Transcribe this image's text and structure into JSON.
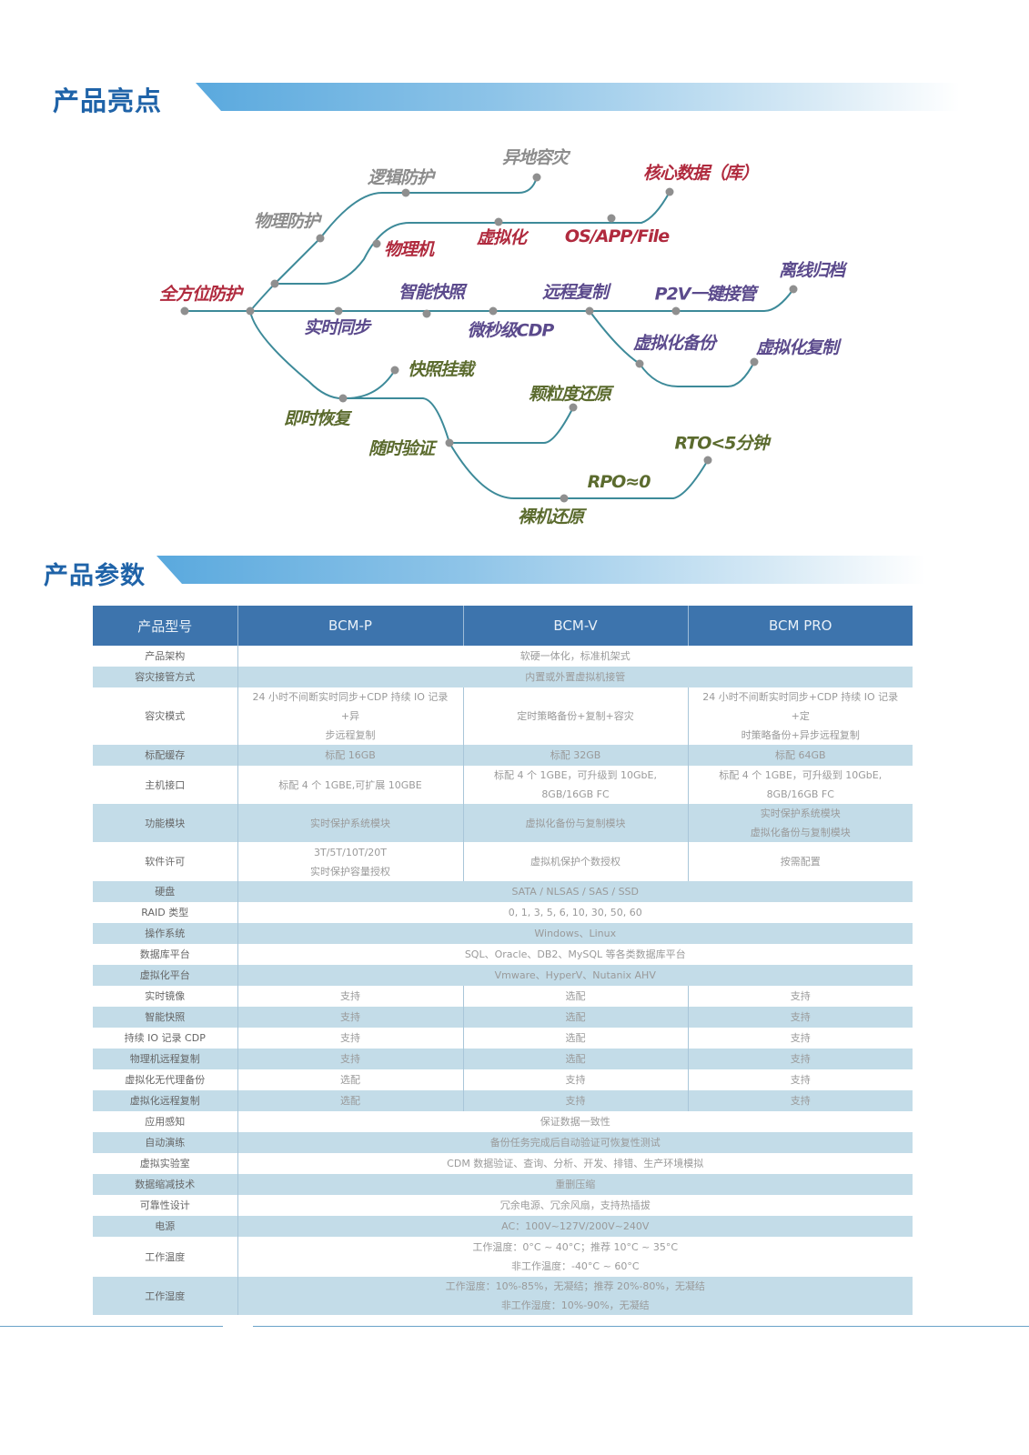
{
  "highlights": {
    "title": "产品亮点",
    "labels": [
      {
        "text": "全方位防护",
        "tone": "red"
      },
      {
        "text": "物理防护",
        "tone": "grey"
      },
      {
        "text": "逻辑防护",
        "tone": "grey"
      },
      {
        "text": "异地容灾",
        "tone": "grey"
      },
      {
        "text": "核心数据（库）",
        "tone": "red"
      },
      {
        "text": "物理机",
        "tone": "red"
      },
      {
        "text": "虚拟化",
        "tone": "red"
      },
      {
        "text": "OS/APP/File",
        "tone": "red"
      },
      {
        "text": "智能快照",
        "tone": "purple"
      },
      {
        "text": "远程复制",
        "tone": "purple"
      },
      {
        "text": "P2V一键接管",
        "tone": "purple"
      },
      {
        "text": "离线归档",
        "tone": "purple"
      },
      {
        "text": "实时同步",
        "tone": "purple"
      },
      {
        "text": "微秒级CDP",
        "tone": "purple"
      },
      {
        "text": "虚拟化备份",
        "tone": "purple"
      },
      {
        "text": "虚拟化复制",
        "tone": "purple"
      },
      {
        "text": "快照挂载",
        "tone": "green"
      },
      {
        "text": "即时恢复",
        "tone": "green"
      },
      {
        "text": "颗粒度还原",
        "tone": "green"
      },
      {
        "text": "随时验证",
        "tone": "green"
      },
      {
        "text": "RTO<5分钟",
        "tone": "green"
      },
      {
        "text": "RPO≈0",
        "tone": "green"
      },
      {
        "text": "裸机还原",
        "tone": "green"
      }
    ],
    "colors": {
      "line": "#3d8a99",
      "red": "#b02a3e",
      "grey": "#8c8c8c",
      "purple": "#5b4a8c",
      "green": "#5b6b2e"
    }
  },
  "params": {
    "title": "产品参数",
    "header": [
      "产品型号",
      "BCM-P",
      "BCM-V",
      "BCM PRO"
    ],
    "rows": [
      {
        "label": "产品架构",
        "cells": [
          "软硬一体化，标准机架式"
        ]
      },
      {
        "label": "容灾接管方式",
        "cells": [
          "内置或外置虚拟机接管"
        ]
      },
      {
        "label": "容灾模式",
        "cells": [
          "24 小时不间断实时同步+CDP 持续 IO 记录+异\n步远程复制",
          "定时策略备份+复制+容灾",
          "24 小时不间断实时同步+CDP 持续 IO 记录+定\n时策略备份+异步远程复制"
        ]
      },
      {
        "label": "标配缓存",
        "cells": [
          "标配 16GB",
          "标配 32GB",
          "标配 64GB"
        ]
      },
      {
        "label": "主机接口",
        "cells": [
          "标配 4 个 1GBE,可扩展 10GBE",
          "标配 4 个 1GBE，可升级到 10GbE,\n8GB/16GB FC",
          "标配 4 个 1GBE，可升级到 10GbE,\n8GB/16GB FC"
        ]
      },
      {
        "label": "功能模块",
        "cells": [
          "实时保护系统模块",
          "虚拟化备份与复制模块",
          "实时保护系统模块\n虚拟化备份与复制模块"
        ]
      },
      {
        "label": "软件许可",
        "cells": [
          "3T/5T/10T/20T\n实时保护容量授权",
          "虚拟机保护个数授权",
          "按需配置"
        ]
      },
      {
        "label": "硬盘",
        "cells": [
          "SATA / NLSAS / SAS / SSD"
        ]
      },
      {
        "label": "RAID 类型",
        "cells": [
          "0, 1, 3, 5, 6, 10, 30, 50, 60"
        ]
      },
      {
        "label": "操作系统",
        "cells": [
          "Windows、Linux"
        ]
      },
      {
        "label": "数据库平台",
        "cells": [
          "SQL、Oracle、DB2、MySQL 等各类数据库平台"
        ]
      },
      {
        "label": "虚拟化平台",
        "cells": [
          "Vmware、HyperV、Nutanix AHV"
        ]
      },
      {
        "label": "实时镜像",
        "cells": [
          "支持",
          "选配",
          "支持"
        ]
      },
      {
        "label": "智能快照",
        "cells": [
          "支持",
          "选配",
          "支持"
        ]
      },
      {
        "label": "持续 IO 记录  CDP",
        "cells": [
          "支持",
          "选配",
          "支持"
        ]
      },
      {
        "label": "物理机远程复制",
        "cells": [
          "支持",
          "选配",
          "支持"
        ]
      },
      {
        "label": "虚拟化无代理备份",
        "cells": [
          "选配",
          "支持",
          "支持"
        ]
      },
      {
        "label": "虚拟化远程复制",
        "cells": [
          "选配",
          "支持",
          "支持"
        ]
      },
      {
        "label": "应用感知",
        "cells": [
          "保证数据一致性"
        ]
      },
      {
        "label": "自动演练",
        "cells": [
          "备份任务完成后自动验证可恢复性测试"
        ]
      },
      {
        "label": "虚拟实验室",
        "cells": [
          "CDM 数据验证、查询、分析、开发、排错、生产环境模拟"
        ]
      },
      {
        "label": "数据缩减技术",
        "cells": [
          "重删压缩"
        ]
      },
      {
        "label": "可靠性设计",
        "cells": [
          "冗余电源、冗余风扇，支持热插拔"
        ]
      },
      {
        "label": "电源",
        "cells": [
          "AC：100V~127V/200V~240V"
        ]
      },
      {
        "label": "工作温度",
        "cells": [
          "工作温度：0°C ~ 40°C；推荐 10°C  ~  35°C\n非工作温度：-40°C ~ 60°C"
        ]
      },
      {
        "label": "工作湿度",
        "cells": [
          "工作湿度：10%-85%，无凝结；推荐 20%-80%，无凝结\n非工作湿度：10%-90%，无凝结"
        ]
      }
    ],
    "stripe_color": "#c3dce8",
    "header_color": "#3d74ad"
  }
}
